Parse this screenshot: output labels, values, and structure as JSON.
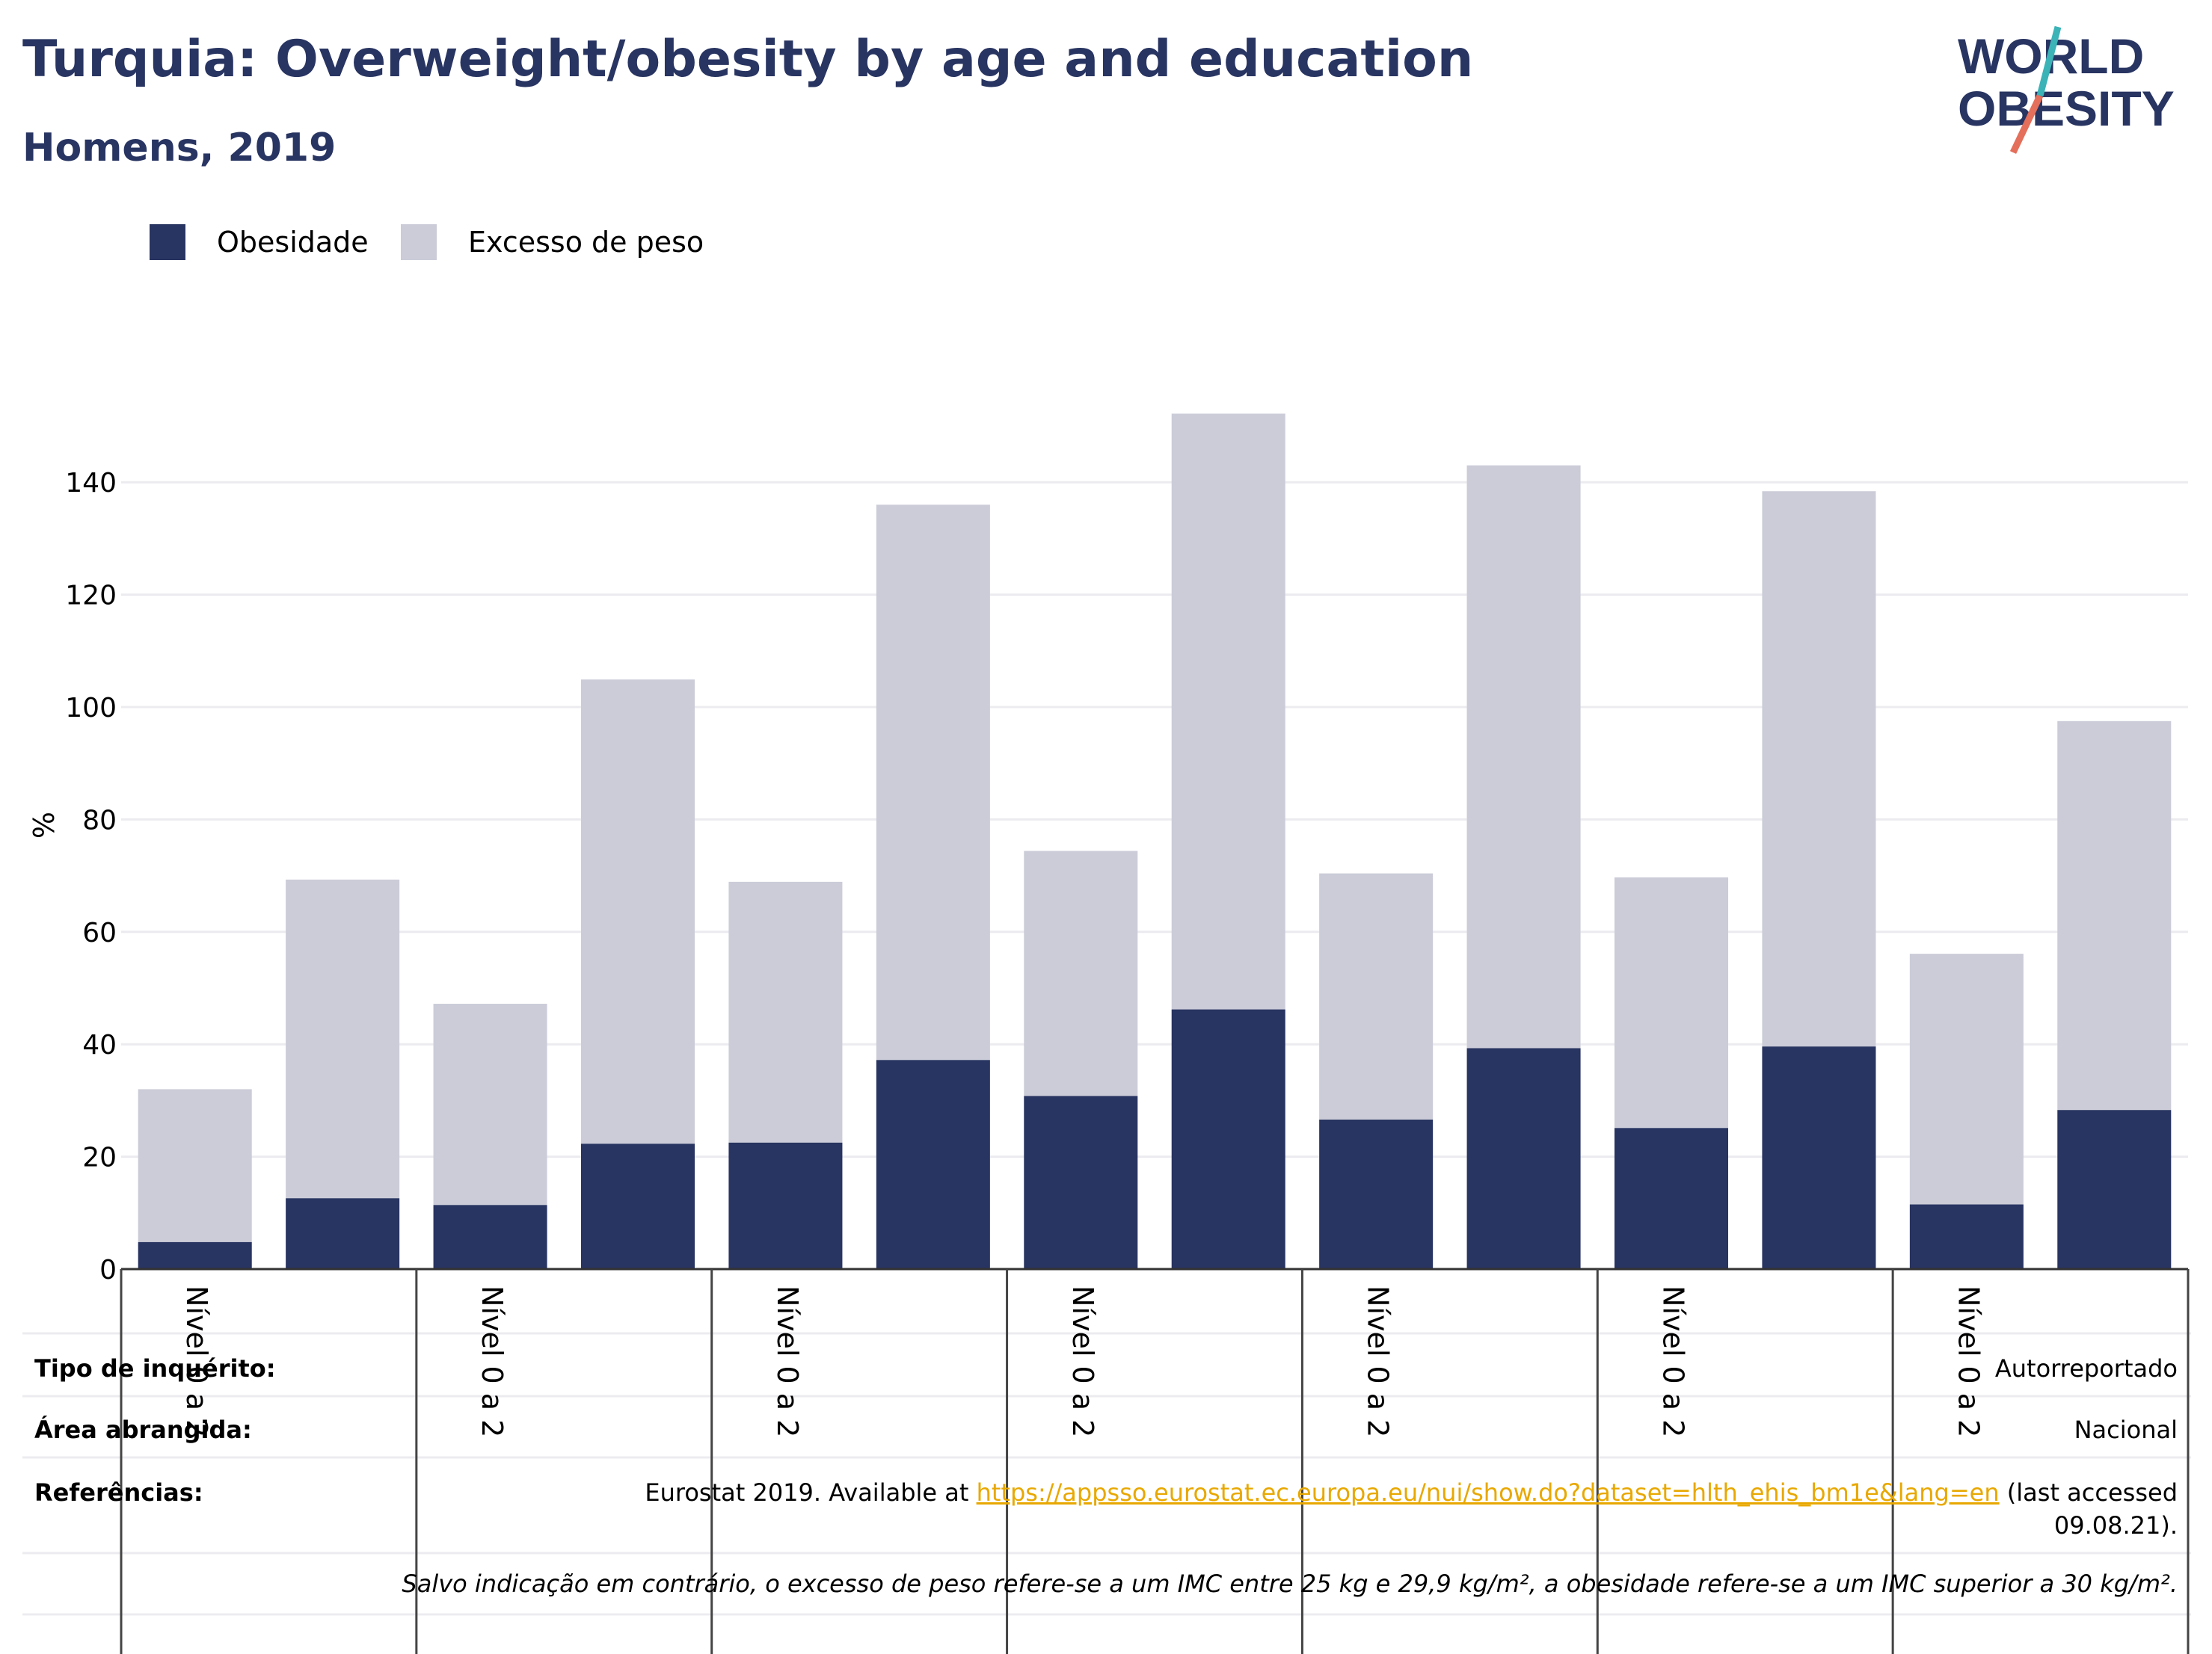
{
  "header": {
    "title": "Turquia: Overweight/obesity by age and education",
    "subtitle": "Homens, 2019"
  },
  "logo": {
    "line1": "WORLD",
    "line2": "OBESITY"
  },
  "colors": {
    "obesity": "#283461",
    "overweight": "#cbccd8",
    "title": "#283461",
    "link": "#e8a800"
  },
  "legend": [
    {
      "label": "Obesidade",
      "color": "#283461"
    },
    {
      "label": "Excesso de peso",
      "color": "#cbccd8"
    }
  ],
  "chart_data": {
    "type": "bar",
    "stacked": true,
    "ylabel": "%",
    "ylim": [
      0,
      150
    ],
    "yticks": [
      0,
      20,
      40,
      60,
      80,
      100,
      120,
      140
    ],
    "grid": true,
    "legend_position": "top-left",
    "group_label": "Nível 0 a 2",
    "categories": [
      "",
      "",
      "",
      "",
      "",
      "",
      "",
      "",
      "",
      "",
      "",
      "",
      "",
      ""
    ],
    "series": [
      {
        "name": "Obesidade",
        "values": [
          4.8,
          12.6,
          11.4,
          22.3,
          22.5,
          37.2,
          30.8,
          46.2,
          26.6,
          39.3,
          25.1,
          39.6,
          11.5,
          28.3
        ]
      },
      {
        "name": "Excesso de peso",
        "values": [
          27.2,
          56.7,
          35.8,
          82.6,
          46.4,
          98.8,
          43.6,
          106.0,
          43.8,
          103.7,
          44.6,
          98.8,
          44.6,
          69.2
        ]
      }
    ],
    "totals": [
      32.0,
      69.3,
      47.2,
      104.9,
      68.9,
      136.0,
      74.4,
      152.2,
      70.4,
      143.0,
      69.7,
      138.4,
      56.1,
      97.5
    ]
  },
  "footer": {
    "survey_label": "Tipo de inquérito:",
    "survey_value": "Autorreportado",
    "area_label": "Área abrangida:",
    "area_value": "Nacional",
    "refs_label": "Referências:",
    "refs_prefix": "Eurostat 2019. Available at ",
    "refs_link": "https://appsso.eurostat.ec.europa.eu/nui/show.do?dataset=hlth_ehis_bm1e&lang=en",
    "refs_suffix": " (last accessed",
    "refs_date": "09.08.21).",
    "note": "Salvo indicação em contrário, o excesso de peso refere-se a um IMC entre 25 kg e 29,9 kg/m², a obesidade refere-se a um IMC superior a 30 kg/m²."
  }
}
